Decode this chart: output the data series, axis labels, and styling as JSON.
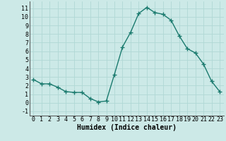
{
  "x": [
    0,
    1,
    2,
    3,
    4,
    5,
    6,
    7,
    8,
    9,
    10,
    11,
    12,
    13,
    14,
    15,
    16,
    17,
    18,
    19,
    20,
    21,
    22,
    23
  ],
  "y": [
    2.7,
    2.2,
    2.2,
    1.8,
    1.3,
    1.2,
    1.2,
    0.5,
    0.1,
    0.2,
    3.3,
    6.5,
    8.2,
    10.4,
    11.1,
    10.5,
    10.3,
    9.6,
    7.8,
    6.3,
    5.8,
    4.5,
    2.5,
    1.3
  ],
  "xlabel": "Humidex (Indice chaleur)",
  "ylim": [
    -1.5,
    11.8
  ],
  "xlim": [
    -0.5,
    23.5
  ],
  "yticks": [
    -1,
    0,
    1,
    2,
    3,
    4,
    5,
    6,
    7,
    8,
    9,
    10,
    11
  ],
  "xticks": [
    0,
    1,
    2,
    3,
    4,
    5,
    6,
    7,
    8,
    9,
    10,
    11,
    12,
    13,
    14,
    15,
    16,
    17,
    18,
    19,
    20,
    21,
    22,
    23
  ],
  "line_color": "#1a7a6e",
  "marker_color": "#1a7a6e",
  "bg_color": "#cce9e7",
  "grid_color": "#b0d8d5",
  "xlabel_fontsize": 7,
  "tick_fontsize": 6,
  "marker_size": 2.5,
  "line_width": 1.0
}
